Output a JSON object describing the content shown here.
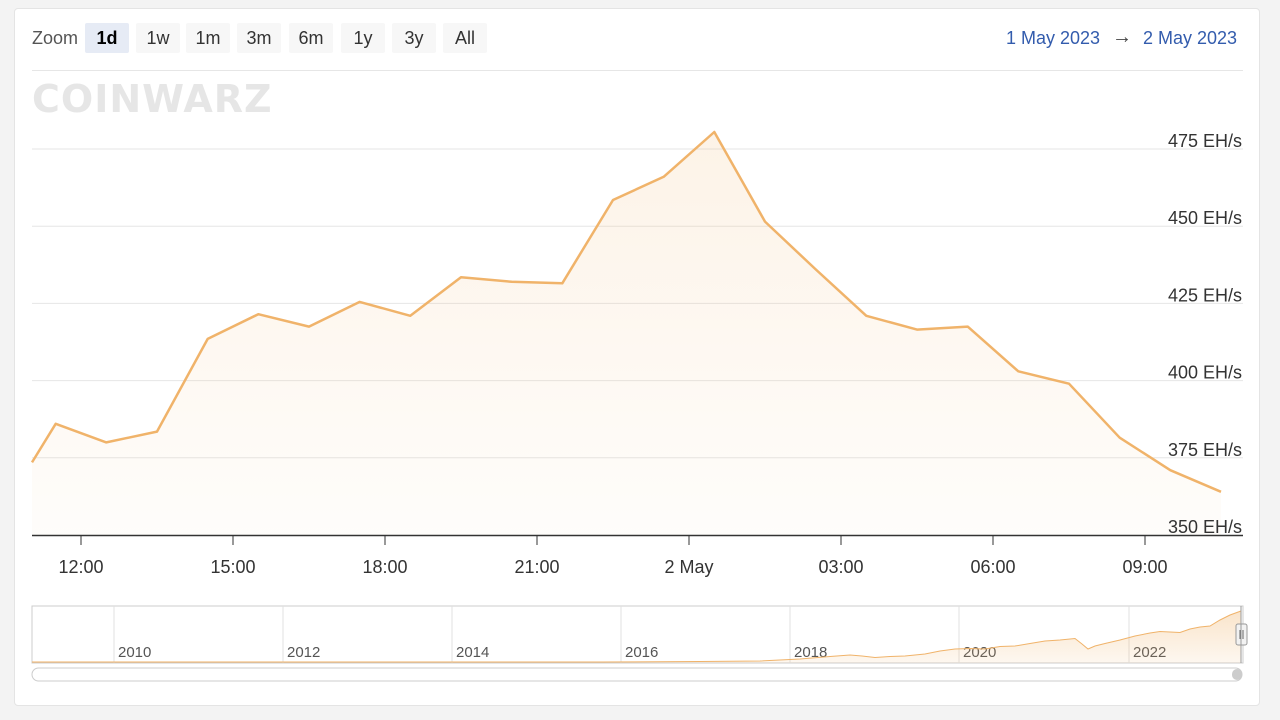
{
  "zoom": {
    "label": "Zoom",
    "buttons": [
      "1d",
      "1w",
      "1m",
      "3m",
      "6m",
      "1y",
      "3y",
      "All"
    ],
    "active": "1d"
  },
  "range": {
    "from": "1 May 2023",
    "arrow": "→",
    "to": "2 May 2023"
  },
  "watermark": "COINWARZ",
  "colors": {
    "line": "#f0b36a",
    "accent": "#335cad",
    "active_button": "#e6ebf5"
  },
  "chart_data": {
    "type": "area",
    "ylim": [
      350,
      480
    ],
    "y_unit": "EH/s",
    "y_ticks": [
      350,
      375,
      400,
      425,
      450,
      475
    ],
    "y_tick_labels": [
      "350 EH/s",
      "375 EH/s",
      "400 EH/s",
      "425 EH/s",
      "450 EH/s",
      "475 EH/s"
    ],
    "x_hours": [
      10.5,
      11.5,
      12.5,
      13.5,
      14.5,
      15.5,
      16.5,
      17.5,
      18.5,
      19.5,
      20.5,
      21.5,
      22.5,
      23.5,
      24.5,
      25.5,
      26.5,
      27.5,
      28.5,
      29.5,
      30.5,
      31.5,
      32.5,
      33.5,
      34.5
    ],
    "x_hour_values": [
      10.5,
      11.5,
      12.5,
      13.5,
      14.5,
      15.5,
      16.5,
      17.5,
      18.5,
      19.5,
      20.5,
      21.5,
      22.5,
      23.5,
      24.5,
      25.5,
      26.5,
      27.5,
      28.5,
      29.5,
      30.5,
      31.5,
      32.5,
      33.5,
      34.5
    ],
    "values": [
      373.5,
      386,
      380,
      383.5,
      413.5,
      421.5,
      417.5,
      425.5,
      421,
      433.5,
      432,
      431.5,
      458.5,
      466,
      480.5,
      451.5,
      436,
      421,
      416.5,
      417.5,
      403,
      399,
      381.5,
      371,
      364
    ],
    "x_ticks": [
      12,
      15,
      18,
      21,
      24,
      27,
      30,
      33
    ],
    "x_tick_labels": [
      "12:00",
      "15:00",
      "18:00",
      "21:00",
      "2 May",
      "03:00",
      "06:00",
      "09:00"
    ],
    "navigator": {
      "year_labels": [
        "2010",
        "2012",
        "2014",
        "2016",
        "2018",
        "2020",
        "2022"
      ]
    }
  }
}
